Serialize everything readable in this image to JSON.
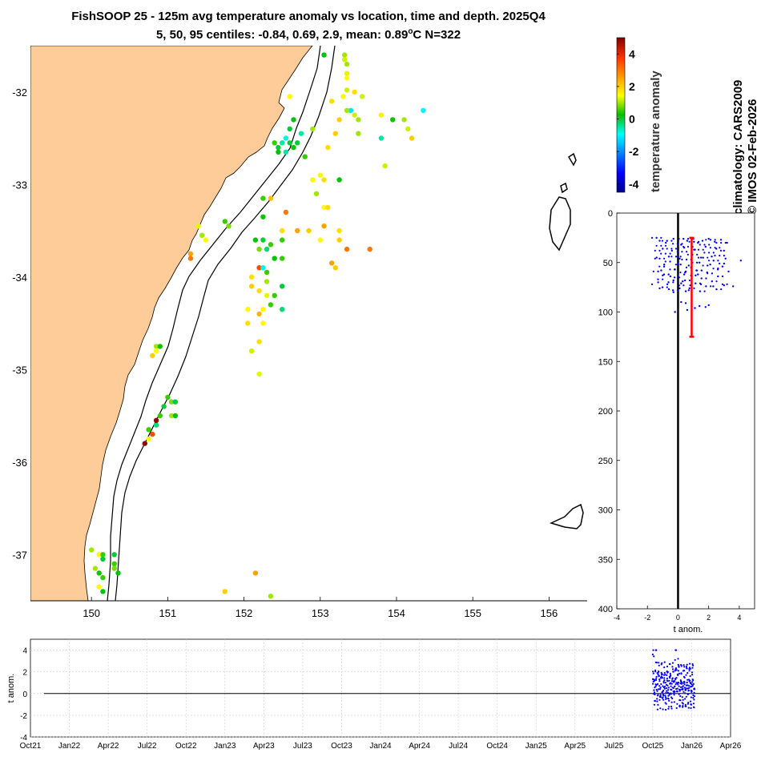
{
  "title": {
    "line1": "FishSOOP 25 - 125m avg temperature anomaly vs location, time and depth. 2025Q4",
    "line2_prefix": "5, 50, 95 centiles: -0.84, 0.69, 2.9, mean: 0.89",
    "line2_deg": "o",
    "line2_suffix": "C N=322"
  },
  "credits": {
    "climatology": "climatology: CARS2009",
    "copyright": "© IMOS 02-Feb-2026"
  },
  "colorbar": {
    "label": "temperature anomaly",
    "ticks": [
      "4",
      "2",
      "0",
      "-2",
      "-4"
    ],
    "min": -4.5,
    "max": 5
  },
  "map": {
    "xlim": [
      149.2,
      156.5
    ],
    "ylim": [
      -37.5,
      -31.5
    ],
    "xticks": [
      "150",
      "151",
      "152",
      "153",
      "154",
      "155",
      "156"
    ],
    "yticks": [
      "-32",
      "-33",
      "-34",
      "-35",
      "-36",
      "-37"
    ],
    "land_color": "#fdcc99"
  },
  "depth_profile": {
    "xlabel": "t anom.",
    "xlim": [
      -4,
      5
    ],
    "ylim": [
      0,
      400
    ],
    "xticks": [
      "-4",
      "-2",
      "0",
      "2",
      "4"
    ],
    "yticks": [
      "0",
      "50",
      "100",
      "150",
      "200",
      "250",
      "300",
      "350",
      "400"
    ],
    "mean_anomaly": 0.89,
    "bar_depth_range": [
      25,
      125
    ]
  },
  "time_series": {
    "ylabel": "t anom.",
    "ylim": [
      -4,
      5
    ],
    "yticks": [
      "4",
      "2",
      "0",
      "-2",
      "-4"
    ],
    "xticks": [
      "Oct21",
      "Jan22",
      "Apr22",
      "Jul22",
      "Oct22",
      "Jan23",
      "Apr23",
      "Jul23",
      "Oct23",
      "Jan24",
      "Apr24",
      "Jul24",
      "Oct24",
      "Jan25",
      "Apr25",
      "Jul25",
      "Oct25",
      "Jan26",
      "Apr26"
    ]
  },
  "chart_data": {
    "type": "scatter",
    "title": "FishSOOP 25 - 125m avg temperature anomaly vs location, time and depth. 2025Q4",
    "stats": {
      "p5": -0.84,
      "p50": 0.69,
      "p95": 2.9,
      "mean": 0.89,
      "units": "°C",
      "n": 322
    },
    "map_points": [
      {
        "lon": 153.05,
        "lat": -31.6,
        "t": 0.2
      },
      {
        "lon": 153.32,
        "lat": -31.6,
        "t": 1.0
      },
      {
        "lon": 153.32,
        "lat": -31.65,
        "t": 1.2
      },
      {
        "lon": 153.35,
        "lat": -31.7,
        "t": 1.0
      },
      {
        "lon": 153.35,
        "lat": -31.8,
        "t": 1.3
      },
      {
        "lon": 153.35,
        "lat": -31.85,
        "t": 1.5
      },
      {
        "lon": 153.35,
        "lat": -31.98,
        "t": 1.2
      },
      {
        "lon": 153.3,
        "lat": -32.05,
        "t": 1.5
      },
      {
        "lon": 153.45,
        "lat": -32.0,
        "t": 1.8
      },
      {
        "lon": 153.55,
        "lat": -32.05,
        "t": 1.2
      },
      {
        "lon": 153.15,
        "lat": -32.1,
        "t": 1.8
      },
      {
        "lon": 153.4,
        "lat": -32.2,
        "t": -1.2
      },
      {
        "lon": 153.35,
        "lat": -32.2,
        "t": 1.0
      },
      {
        "lon": 153.25,
        "lat": -32.3,
        "t": 2.0
      },
      {
        "lon": 153.45,
        "lat": -32.25,
        "t": 1.2
      },
      {
        "lon": 153.5,
        "lat": -32.3,
        "t": 1.0
      },
      {
        "lon": 153.8,
        "lat": -32.25,
        "t": 1.6
      },
      {
        "lon": 153.95,
        "lat": -32.3,
        "t": 0.3
      },
      {
        "lon": 154.1,
        "lat": -32.3,
        "t": 1.0
      },
      {
        "lon": 154.15,
        "lat": -32.4,
        "t": 1.2
      },
      {
        "lon": 154.2,
        "lat": -32.5,
        "t": 2.0
      },
      {
        "lon": 154.35,
        "lat": -32.2,
        "t": -1.0
      },
      {
        "lon": 153.8,
        "lat": -32.5,
        "t": -0.5
      },
      {
        "lon": 153.5,
        "lat": -32.45,
        "t": 1.0
      },
      {
        "lon": 153.2,
        "lat": -32.45,
        "t": 2.0
      },
      {
        "lon": 153.1,
        "lat": -32.6,
        "t": 1.8
      },
      {
        "lon": 153.85,
        "lat": -32.8,
        "t": 1.2
      },
      {
        "lon": 152.6,
        "lat": -32.05,
        "t": 1.5
      },
      {
        "lon": 152.9,
        "lat": -32.4,
        "t": 1.0
      },
      {
        "lon": 152.6,
        "lat": -32.55,
        "t": 0.0
      },
      {
        "lon": 152.5,
        "lat": -32.55,
        "t": -0.5
      },
      {
        "lon": 152.45,
        "lat": -32.6,
        "t": 0.0
      },
      {
        "lon": 152.55,
        "lat": -32.5,
        "t": -0.8
      },
      {
        "lon": 152.45,
        "lat": -32.65,
        "t": 0.2
      },
      {
        "lon": 152.55,
        "lat": -32.65,
        "t": -0.5
      },
      {
        "lon": 152.65,
        "lat": -32.6,
        "t": 0.3
      },
      {
        "lon": 152.7,
        "lat": -32.55,
        "t": 0.0
      },
      {
        "lon": 152.4,
        "lat": -32.55,
        "t": 0.5
      },
      {
        "lon": 152.8,
        "lat": -32.7,
        "t": 0.5
      },
      {
        "lon": 152.75,
        "lat": -32.45,
        "t": -0.5
      },
      {
        "lon": 152.65,
        "lat": -32.3,
        "t": 0.2
      },
      {
        "lon": 152.6,
        "lat": -32.4,
        "t": 0.0
      },
      {
        "lon": 153.0,
        "lat": -32.9,
        "t": 1.5
      },
      {
        "lon": 153.05,
        "lat": -32.95,
        "t": 1.8
      },
      {
        "lon": 153.25,
        "lat": -32.95,
        "t": 0.2
      },
      {
        "lon": 152.95,
        "lat": -33.1,
        "t": 1.0
      },
      {
        "lon": 152.9,
        "lat": -32.95,
        "t": 1.5
      },
      {
        "lon": 153.05,
        "lat": -33.25,
        "t": 1.5
      },
      {
        "lon": 153.1,
        "lat": -33.25,
        "t": 1.8
      },
      {
        "lon": 152.55,
        "lat": -33.3,
        "t": 3.0
      },
      {
        "lon": 152.35,
        "lat": -33.15,
        "t": 2.2
      },
      {
        "lon": 152.25,
        "lat": -33.35,
        "t": 0.3
      },
      {
        "lon": 152.25,
        "lat": -33.15,
        "t": 0.5
      },
      {
        "lon": 152.5,
        "lat": -33.5,
        "t": 1.8
      },
      {
        "lon": 152.7,
        "lat": -33.5,
        "t": 2.5
      },
      {
        "lon": 152.85,
        "lat": -33.5,
        "t": 2.0
      },
      {
        "lon": 153.05,
        "lat": -33.45,
        "t": 2.5
      },
      {
        "lon": 153.25,
        "lat": -33.5,
        "t": 1.8
      },
      {
        "lon": 153.25,
        "lat": -33.6,
        "t": 2.0
      },
      {
        "lon": 153.0,
        "lat": -33.6,
        "t": 1.5
      },
      {
        "lon": 153.15,
        "lat": -33.85,
        "t": 2.5
      },
      {
        "lon": 153.2,
        "lat": -33.9,
        "t": 2.0
      },
      {
        "lon": 153.35,
        "lat": -33.7,
        "t": 3.0
      },
      {
        "lon": 153.65,
        "lat": -33.7,
        "t": 3.0
      },
      {
        "lon": 152.15,
        "lat": -33.6,
        "t": 0.2
      },
      {
        "lon": 152.25,
        "lat": -33.6,
        "t": 0.0
      },
      {
        "lon": 152.2,
        "lat": -33.7,
        "t": 0.8
      },
      {
        "lon": 152.3,
        "lat": -33.7,
        "t": -0.3
      },
      {
        "lon": 152.35,
        "lat": -33.65,
        "t": 0.5
      },
      {
        "lon": 152.5,
        "lat": -33.6,
        "t": 0.5
      },
      {
        "lon": 152.4,
        "lat": -33.8,
        "t": 0.2
      },
      {
        "lon": 152.5,
        "lat": -33.8,
        "t": 0.5
      },
      {
        "lon": 152.2,
        "lat": -33.9,
        "t": 3.5
      },
      {
        "lon": 152.25,
        "lat": -33.9,
        "t": -0.8
      },
      {
        "lon": 152.3,
        "lat": -33.95,
        "t": 0.5
      },
      {
        "lon": 152.3,
        "lat": -34.05,
        "t": 1.0
      },
      {
        "lon": 152.1,
        "lat": -34.0,
        "t": 1.8
      },
      {
        "lon": 152.1,
        "lat": -34.1,
        "t": 2.0
      },
      {
        "lon": 152.2,
        "lat": -34.15,
        "t": 1.8
      },
      {
        "lon": 152.3,
        "lat": -34.2,
        "t": 1.3
      },
      {
        "lon": 152.4,
        "lat": -34.2,
        "t": 0.5
      },
      {
        "lon": 152.5,
        "lat": -34.1,
        "t": 0.0
      },
      {
        "lon": 152.35,
        "lat": -34.3,
        "t": 0.5
      },
      {
        "lon": 152.25,
        "lat": -34.35,
        "t": 1.5
      },
      {
        "lon": 152.2,
        "lat": -34.4,
        "t": 2.3
      },
      {
        "lon": 152.5,
        "lat": -34.35,
        "t": -0.3
      },
      {
        "lon": 152.05,
        "lat": -34.35,
        "t": 1.5
      },
      {
        "lon": 152.05,
        "lat": -34.5,
        "t": 1.8
      },
      {
        "lon": 152.25,
        "lat": -34.5,
        "t": 1.5
      },
      {
        "lon": 152.2,
        "lat": -34.7,
        "t": 1.8
      },
      {
        "lon": 152.1,
        "lat": -34.8,
        "t": 1.2
      },
      {
        "lon": 152.2,
        "lat": -35.05,
        "t": 1.3
      },
      {
        "lon": 151.45,
        "lat": -33.55,
        "t": 1.0
      },
      {
        "lon": 151.5,
        "lat": -33.6,
        "t": 1.5
      },
      {
        "lon": 151.4,
        "lat": -33.45,
        "t": 1.3
      },
      {
        "lon": 151.3,
        "lat": -33.75,
        "t": 2.5
      },
      {
        "lon": 151.3,
        "lat": -33.8,
        "t": 3.0
      },
      {
        "lon": 151.75,
        "lat": -33.4,
        "t": 0.5
      },
      {
        "lon": 151.8,
        "lat": -33.45,
        "t": 0.8
      },
      {
        "lon": 150.85,
        "lat": -34.75,
        "t": 1.0
      },
      {
        "lon": 150.85,
        "lat": -34.8,
        "t": 1.5
      },
      {
        "lon": 150.8,
        "lat": -34.85,
        "t": 2.0
      },
      {
        "lon": 150.9,
        "lat": -34.75,
        "t": 0.3
      },
      {
        "lon": 151.0,
        "lat": -35.3,
        "t": 0.5
      },
      {
        "lon": 151.05,
        "lat": -35.35,
        "t": 0.8
      },
      {
        "lon": 150.95,
        "lat": -35.4,
        "t": 0.0
      },
      {
        "lon": 151.1,
        "lat": -35.35,
        "t": 0.0
      },
      {
        "lon": 150.9,
        "lat": -35.5,
        "t": 0.5
      },
      {
        "lon": 151.05,
        "lat": -35.5,
        "t": 1.0
      },
      {
        "lon": 151.1,
        "lat": -35.5,
        "t": 0.3
      },
      {
        "lon": 150.85,
        "lat": -35.6,
        "t": -0.3
      },
      {
        "lon": 150.8,
        "lat": -35.7,
        "t": 3.5
      },
      {
        "lon": 150.75,
        "lat": -35.65,
        "t": 0.5
      },
      {
        "lon": 150.85,
        "lat": -35.55,
        "t": 4.8
      },
      {
        "lon": 150.7,
        "lat": -35.8,
        "t": 4.8
      },
      {
        "lon": 150.75,
        "lat": -35.75,
        "t": 1.5
      },
      {
        "lon": 150.0,
        "lat": -36.95,
        "t": 1.0
      },
      {
        "lon": 150.1,
        "lat": -37.0,
        "t": 1.5
      },
      {
        "lon": 150.15,
        "lat": -37.0,
        "t": 0.5
      },
      {
        "lon": 150.15,
        "lat": -37.05,
        "t": 0.0
      },
      {
        "lon": 150.05,
        "lat": -37.15,
        "t": 1.0
      },
      {
        "lon": 150.1,
        "lat": -37.2,
        "t": 0.3
      },
      {
        "lon": 150.15,
        "lat": -37.25,
        "t": 0.5
      },
      {
        "lon": 150.1,
        "lat": -37.35,
        "t": 1.5
      },
      {
        "lon": 150.15,
        "lat": -37.4,
        "t": 0.2
      },
      {
        "lon": 150.3,
        "lat": -37.0,
        "t": 0.0
      },
      {
        "lon": 150.3,
        "lat": -37.1,
        "t": 0.5
      },
      {
        "lon": 150.3,
        "lat": -37.15,
        "t": 0.8
      },
      {
        "lon": 150.35,
        "lat": -37.2,
        "t": 0.2
      },
      {
        "lon": 151.75,
        "lat": -37.4,
        "t": 2.0
      },
      {
        "lon": 152.15,
        "lat": -37.2,
        "t": 2.5
      },
      {
        "lon": 152.35,
        "lat": -37.45,
        "t": 1.0
      }
    ],
    "depth_points": [
      {
        "t": -1.2,
        "d": 28
      },
      {
        "t": -0.8,
        "d": 30
      },
      {
        "t": -0.3,
        "d": 26
      },
      {
        "t": 0.2,
        "d": 32
      },
      {
        "t": 0.6,
        "d": 28
      },
      {
        "t": 1.0,
        "d": 26
      },
      {
        "t": 1.3,
        "d": 30
      },
      {
        "t": 1.6,
        "d": 28
      },
      {
        "t": 2.0,
        "d": 26
      },
      {
        "t": 2.4,
        "d": 29
      },
      {
        "t": 2.8,
        "d": 27
      },
      {
        "t": 3.2,
        "d": 30
      },
      {
        "t": -1.0,
        "d": 36
      },
      {
        "t": -0.4,
        "d": 38
      },
      {
        "t": 0.4,
        "d": 35
      },
      {
        "t": 1.1,
        "d": 37
      },
      {
        "t": 1.8,
        "d": 34
      },
      {
        "t": 2.5,
        "d": 36
      },
      {
        "t": 3.0,
        "d": 38
      },
      {
        "t": -1.4,
        "d": 45
      },
      {
        "t": -0.6,
        "d": 44
      },
      {
        "t": 0.1,
        "d": 46
      },
      {
        "t": 0.9,
        "d": 43
      },
      {
        "t": 1.5,
        "d": 45
      },
      {
        "t": 2.2,
        "d": 44
      },
      {
        "t": 3.1,
        "d": 46
      },
      {
        "t": 4.1,
        "d": 48
      },
      {
        "t": -0.9,
        "d": 52
      },
      {
        "t": 0.0,
        "d": 51
      },
      {
        "t": 0.7,
        "d": 53
      },
      {
        "t": 1.4,
        "d": 50
      },
      {
        "t": 2.1,
        "d": 52
      },
      {
        "t": 2.9,
        "d": 54
      },
      {
        "t": -1.1,
        "d": 58
      },
      {
        "t": -0.2,
        "d": 57
      },
      {
        "t": 0.5,
        "d": 59
      },
      {
        "t": 1.2,
        "d": 58
      },
      {
        "t": 1.9,
        "d": 60
      },
      {
        "t": 2.6,
        "d": 57
      },
      {
        "t": 3.3,
        "d": 59
      },
      {
        "t": -1.0,
        "d": 63
      },
      {
        "t": -0.5,
        "d": 64
      },
      {
        "t": 0.0,
        "d": 63
      },
      {
        "t": 0.4,
        "d": 62
      },
      {
        "t": 0.9,
        "d": 64
      },
      {
        "t": 1.3,
        "d": 62
      },
      {
        "t": -0.3,
        "d": 68
      },
      {
        "t": 0.3,
        "d": 69
      },
      {
        "t": -1.3,
        "d": 70
      },
      {
        "t": -0.7,
        "d": 72
      },
      {
        "t": 0.2,
        "d": 71
      },
      {
        "t": 0.8,
        "d": 73
      },
      {
        "t": 1.5,
        "d": 72
      },
      {
        "t": 2.3,
        "d": 74
      },
      {
        "t": 3.0,
        "d": 73
      },
      {
        "t": 3.6,
        "d": 74
      },
      {
        "t": -1.2,
        "d": 76
      },
      {
        "t": -0.6,
        "d": 77
      },
      {
        "t": 0.1,
        "d": 76
      },
      {
        "t": 0.7,
        "d": 78
      },
      {
        "t": -0.3,
        "d": 80
      },
      {
        "t": 0.5,
        "d": 79
      },
      {
        "t": 0.2,
        "d": 90
      },
      {
        "t": 0.5,
        "d": 91
      },
      {
        "t": -0.2,
        "d": 100
      },
      {
        "t": 0.6,
        "d": 98
      },
      {
        "t": 1.4,
        "d": 94
      },
      {
        "t": 1.8,
        "d": 95
      },
      {
        "t": 2.0,
        "d": 93
      },
      {
        "t": 1.1,
        "d": 96
      }
    ],
    "time_points_note": "Oct25–Jan26 cluster, anomalies roughly -1.5 to 4"
  }
}
